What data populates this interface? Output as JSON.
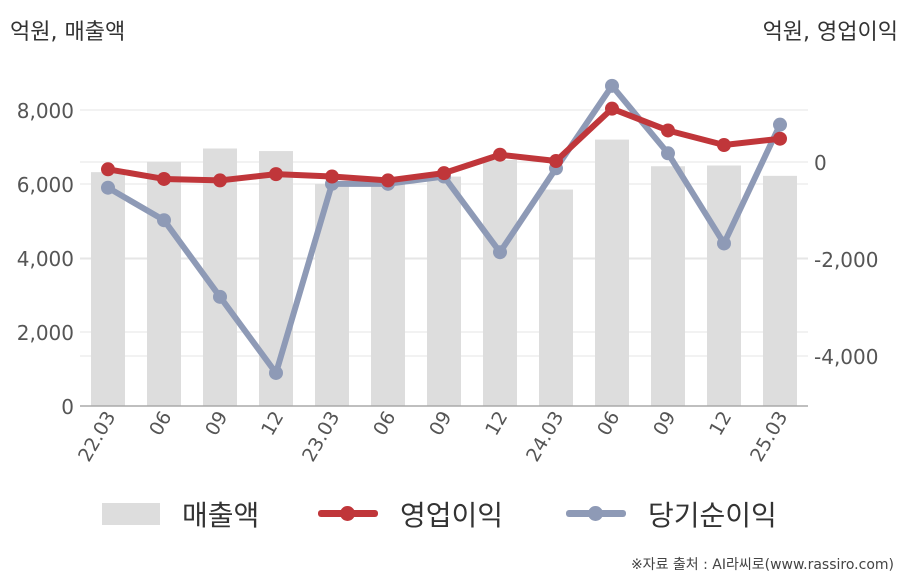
{
  "units": {
    "left": "억원, 매출액",
    "right": "억원, 영업이익"
  },
  "legend": {
    "bar": "매출액",
    "line1": "영업이익",
    "line2": "당기순이익"
  },
  "source": "※자료 출처 : AI라씨로(www.rassiro.com)",
  "colors": {
    "bar": "#dddddd",
    "op": "#c0363a",
    "net": "#8e9ab6",
    "grid": "#e6e6e6",
    "axis": "#aaaaaa"
  },
  "chart_data": {
    "type": "bar",
    "categories": [
      "22.03",
      "06",
      "09",
      "12",
      "23.03",
      "06",
      "09",
      "12",
      "24.03",
      "06",
      "09",
      "12",
      "25.03"
    ],
    "y_left": {
      "ticks": [
        0,
        2000,
        4000,
        6000,
        8000
      ],
      "tick_labels": [
        "0",
        "2,000",
        "4,000",
        "6,000",
        "8,000"
      ],
      "range": [
        0,
        8000
      ]
    },
    "y_right": {
      "ticks": [
        0,
        -2000,
        -4000
      ],
      "tick_labels": [
        "0",
        "-2,000",
        "-4,000"
      ],
      "range": [
        -5000,
        1000
      ]
    },
    "series": [
      {
        "name": "매출액",
        "type": "bar",
        "axis": "left",
        "values": [
          6320,
          6600,
          6960,
          6890,
          6000,
          6000,
          6200,
          6650,
          5850,
          7200,
          6480,
          6500,
          6220
        ]
      },
      {
        "name": "영업이익",
        "type": "line",
        "axis": "right",
        "values": [
          -150,
          -350,
          -380,
          -250,
          -300,
          -380,
          -230,
          150,
          20,
          1100,
          650,
          350,
          480
        ]
      },
      {
        "name": "당기순이익",
        "type": "line",
        "axis": "right",
        "values": [
          -530,
          -1200,
          -2780,
          -4350,
          -450,
          -450,
          -300,
          -1860,
          -130,
          1570,
          180,
          -1680,
          770
        ]
      }
    ]
  }
}
